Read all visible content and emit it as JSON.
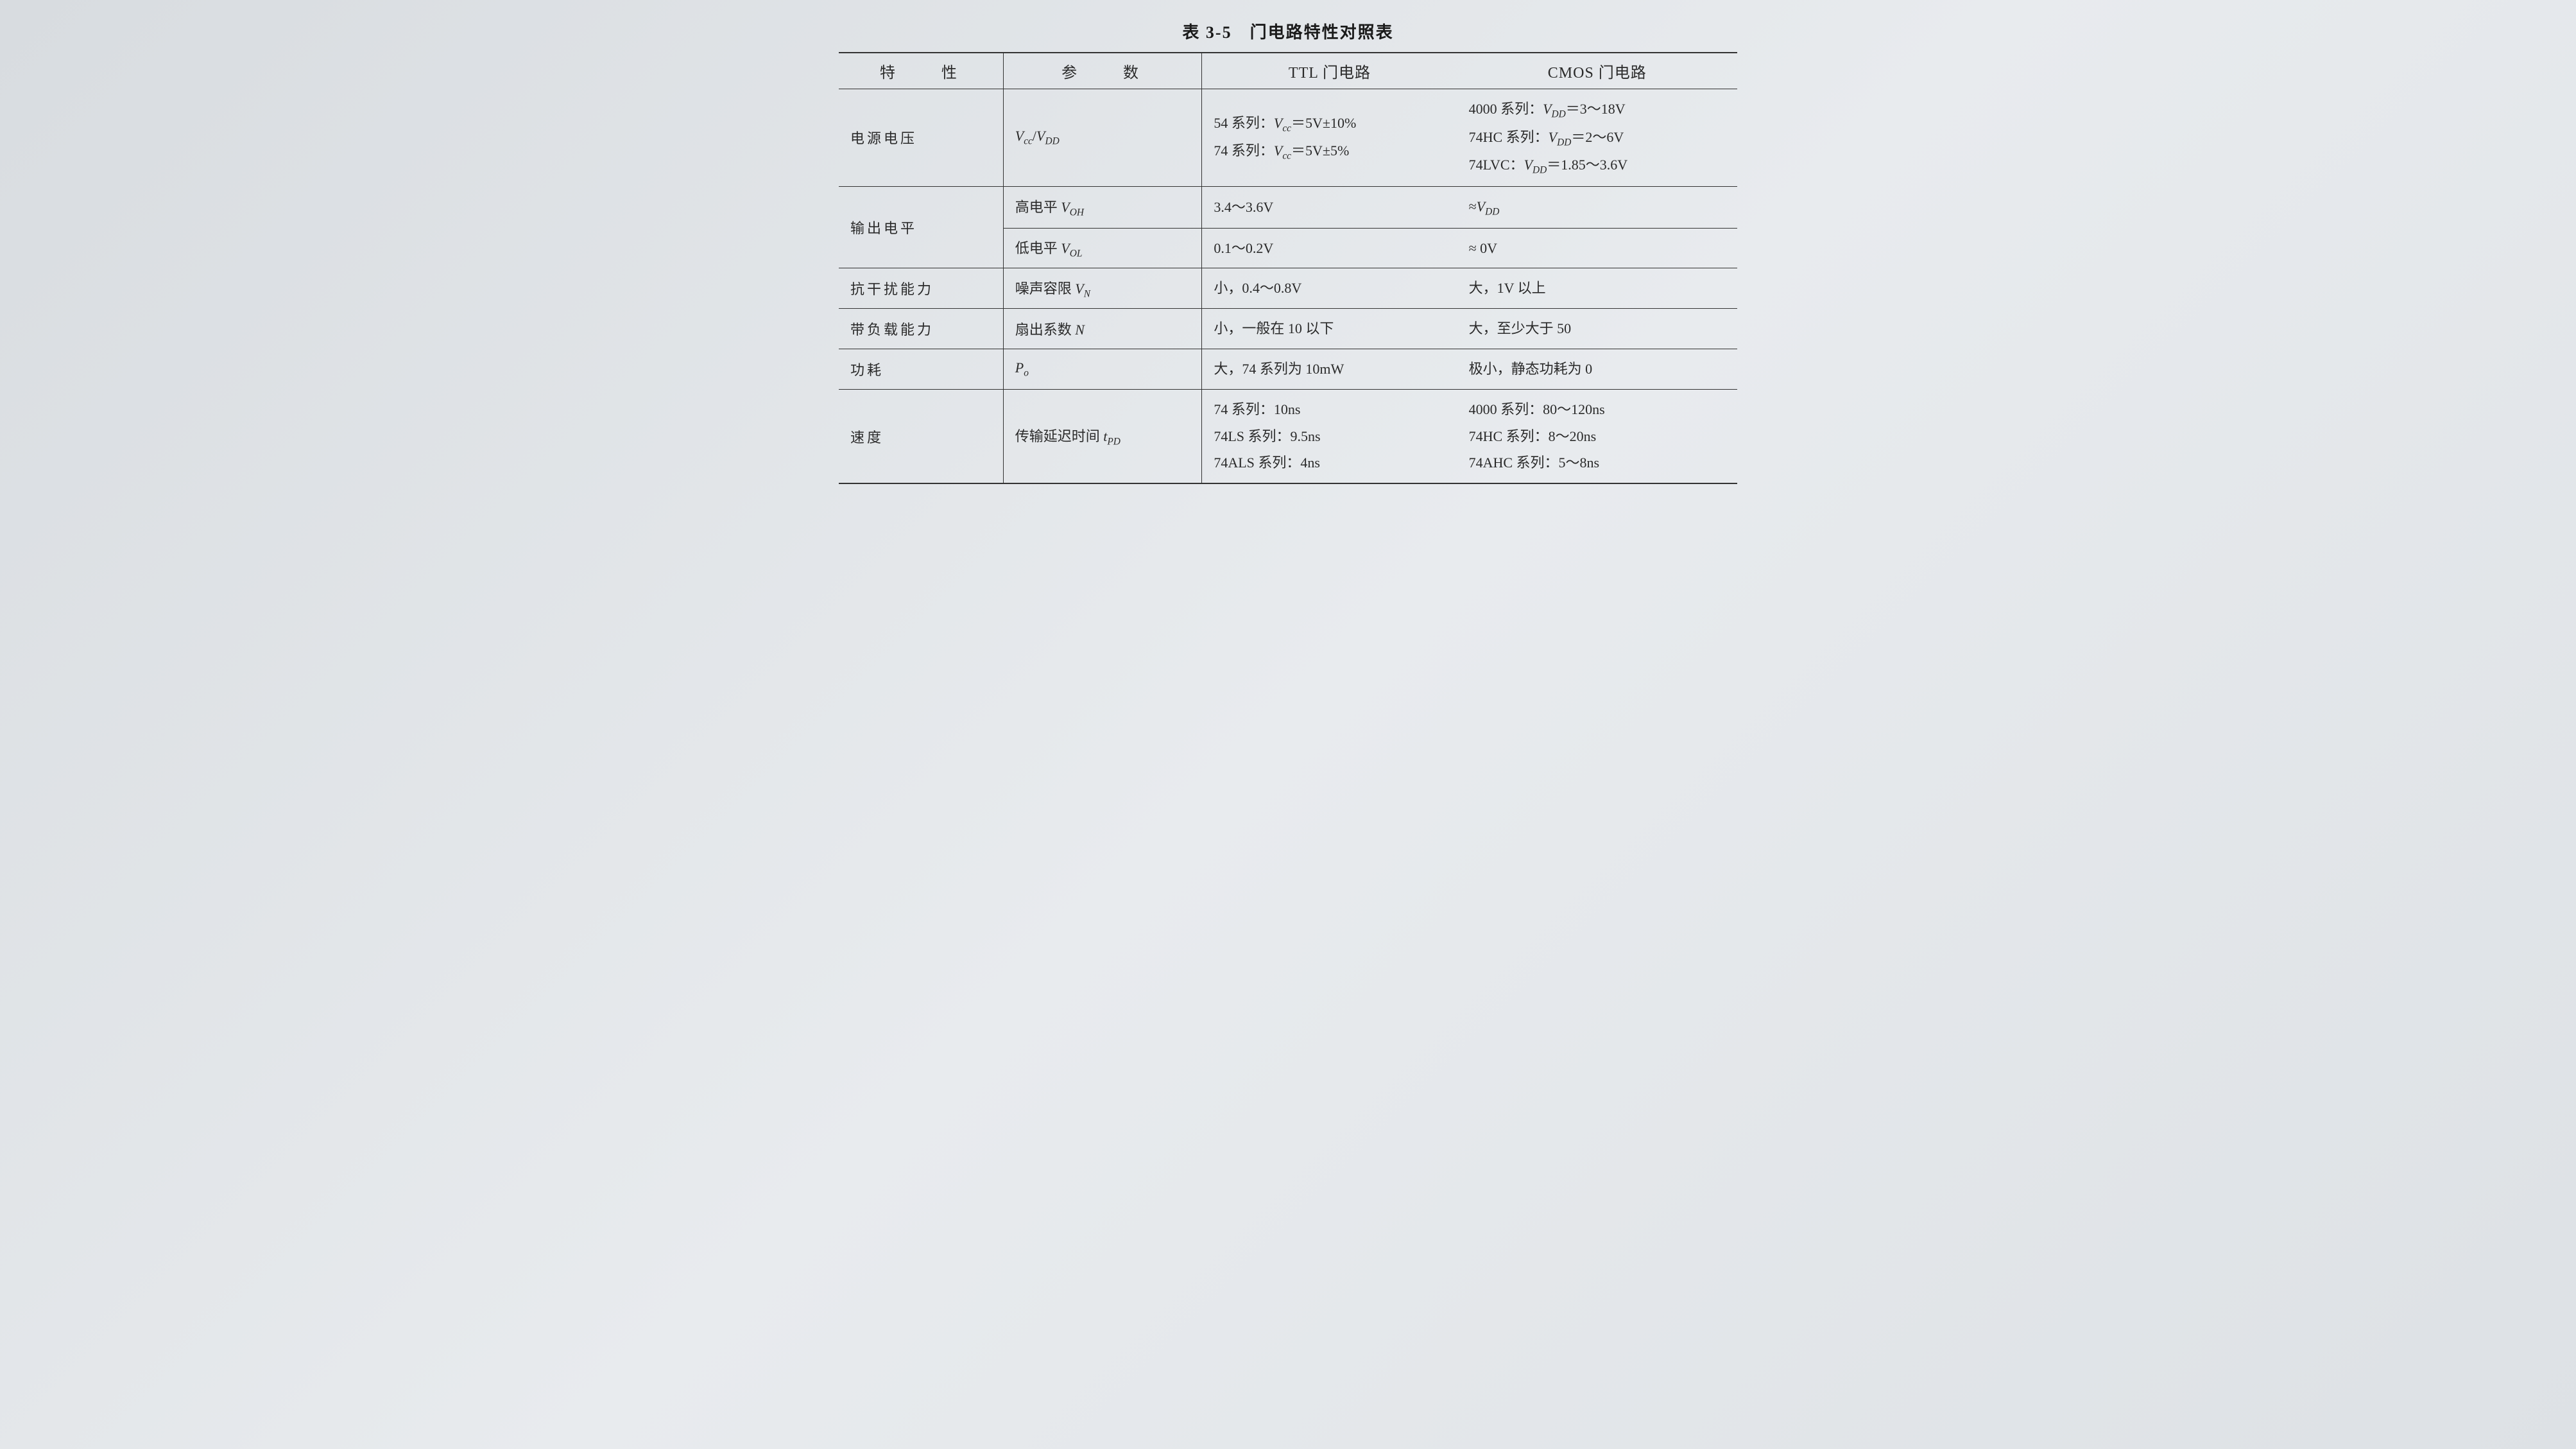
{
  "table": {
    "title": "表 3-5　门电路特性对照表",
    "columns": {
      "characteristic": "特　　性",
      "parameter": "参　　数",
      "ttl": "TTL 门电路",
      "cmos": "CMOS 门电路"
    },
    "rows": [
      {
        "characteristic": "电源电压",
        "parameter_html": "V_cc/V_DD",
        "ttl_lines": [
          "54 系列：V_cc＝5V±10%",
          "74 系列：V_cc＝5V±5%"
        ],
        "cmos_lines": [
          "4000 系列：V_DD＝3～18V",
          "74HC 系列：V_DD＝2～6V",
          "74LVC：V_DD＝1.85～3.6V"
        ]
      },
      {
        "characteristic": "输出电平",
        "subrows": [
          {
            "parameter_html": "高电平 V_OH",
            "ttl": "3.4～3.6V",
            "cmos": "≈V_DD"
          },
          {
            "parameter_html": "低电平 V_OL",
            "ttl": "0.1～0.2V",
            "cmos": "≈ 0V"
          }
        ]
      },
      {
        "characteristic": "抗干扰能力",
        "parameter_html": "噪声容限 V_N",
        "ttl": "小，0.4～0.8V",
        "cmos": "大，1V 以上"
      },
      {
        "characteristic": "带负载能力",
        "parameter_html": "扇出系数 N",
        "ttl": "小，一般在 10 以下",
        "cmos": "大，至少大于 50"
      },
      {
        "characteristic": "功耗",
        "parameter_html": "P_o",
        "ttl": "大，74 系列为 10mW",
        "cmos": "极小，静态功耗为 0"
      },
      {
        "characteristic": "速度",
        "parameter_html": "传输延迟时间 t_PD",
        "ttl_lines": [
          "74 系列：10ns",
          "74LS 系列：9.5ns",
          "74ALS 系列：4ns"
        ],
        "cmos_lines": [
          "4000 系列：80～120ns",
          "74HC 系列：8～20ns",
          "74AHC 系列：5～8ns"
        ]
      }
    ],
    "style": {
      "background_color": "#e0e3e7",
      "text_color": "#2a2a2a",
      "border_color": "#333333",
      "title_fontsize": 26,
      "header_fontsize": 24,
      "body_fontsize": 22,
      "font_family": "SimSun"
    }
  }
}
